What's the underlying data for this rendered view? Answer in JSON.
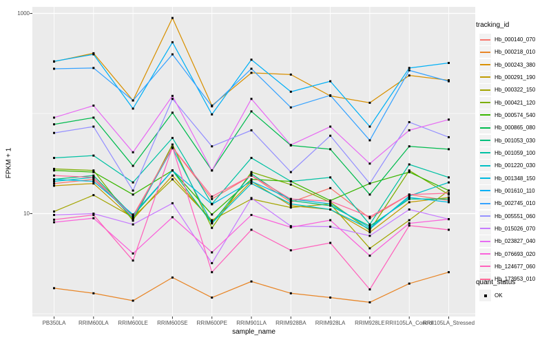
{
  "chart_data": {
    "type": "line",
    "title": "",
    "xlabel": "sample_name",
    "ylabel": "FPKM + 1",
    "y_scale": "log10",
    "ylim": [
      0.93,
      1160
    ],
    "y_major_ticks": [
      {
        "label": "1000",
        "value": 1000
      },
      {
        "label": "10",
        "value": 10
      }
    ],
    "y_minor_gridlines": [
      100,
      1
    ],
    "grid": "on",
    "point_marker": "black-square",
    "categories": [
      "PB350LA",
      "RRIM600LA",
      "RRIM600LE",
      "RRIM600SE",
      "RRIM600PE",
      "RRIM901LA",
      "RRIM928BA",
      "RRIM928LA",
      "RRIM928LE",
      "RRII105LA_Control",
      "RRII105LA_Stressed"
    ],
    "legend": {
      "title": "tracking_id",
      "position": "right"
    },
    "quant_legend": {
      "title": "quant_status",
      "items": [
        {
          "label": "OK",
          "marker": "black-square"
        }
      ]
    },
    "series": [
      {
        "name": "Hb_000140_070",
        "color": "#F8766D",
        "values": [
          20,
          22,
          9.5,
          46,
          14,
          24,
          13,
          18,
          9,
          15.5,
          13.5
        ]
      },
      {
        "name": "Hb_000218_010",
        "color": "#E88526",
        "values": [
          1.8,
          1.6,
          1.35,
          2.3,
          1.45,
          2.1,
          1.6,
          1.45,
          1.3,
          2.0,
          2.6
        ]
      },
      {
        "name": "Hb_000243_380",
        "color": "#D89000",
        "values": [
          330,
          400,
          135,
          900,
          120,
          255,
          245,
          150,
          128,
          240,
          215
        ]
      },
      {
        "name": "Hb_000291_190",
        "color": "#C09B00",
        "values": [
          19,
          20,
          8.8,
          24,
          8.3,
          21,
          12,
          11,
          6.5,
          13,
          14.5
        ]
      },
      {
        "name": "Hb_000322_150",
        "color": "#A3A500",
        "values": [
          10.5,
          15.3,
          9.2,
          22,
          8.6,
          14,
          11.5,
          12.5,
          4.5,
          8.6,
          17
        ]
      },
      {
        "name": "Hb_000421_120",
        "color": "#7CAE00",
        "values": [
          28,
          27,
          8.5,
          49,
          7.2,
          26,
          19.5,
          13,
          6.8,
          27,
          15.5
        ]
      },
      {
        "name": "Hb_000574_540",
        "color": "#39B600",
        "values": [
          27,
          26,
          15.5,
          27,
          9.8,
          22,
          21,
          13.5,
          20,
          26,
          17
        ]
      },
      {
        "name": "Hb_000865_080",
        "color": "#00BB4E",
        "values": [
          78,
          91,
          30,
          102,
          27,
          105,
          48,
          44,
          15.5,
          47,
          44
        ]
      },
      {
        "name": "Hb_001053_030",
        "color": "#00BF7D",
        "values": [
          22,
          24,
          9.5,
          27,
          8,
          25,
          13.5,
          12,
          7.5,
          14,
          14
        ]
      },
      {
        "name": "Hb_001059_100",
        "color": "#00C1A3",
        "values": [
          36,
          38,
          20.5,
          57,
          12.5,
          36,
          21,
          23,
          7.8,
          31,
          23
        ]
      },
      {
        "name": "Hb_001220_030",
        "color": "#00BFC4",
        "values": [
          21,
          23,
          9,
          45,
          8,
          20,
          12.5,
          11,
          7,
          15,
          20.5
        ]
      },
      {
        "name": "Hb_001348_150",
        "color": "#00BAE0",
        "values": [
          22,
          21,
          9.8,
          27,
          12.4,
          21,
          14,
          12.5,
          7.2,
          14.5,
          13
        ]
      },
      {
        "name": "Hb_001610_110",
        "color": "#00B0F6",
        "values": [
          332,
          390,
          112,
          515,
          98,
          345,
          165,
          210,
          74,
          285,
          320
        ]
      },
      {
        "name": "Hb_002745_010",
        "color": "#35A2FF",
        "values": [
          280,
          285,
          135,
          390,
          118,
          280,
          115,
          152,
          54,
          270,
          210
        ]
      },
      {
        "name": "Hb_005551_060",
        "color": "#9590FF",
        "values": [
          64,
          74,
          17,
          140,
          47,
          68,
          26,
          60,
          20,
          82,
          58
        ]
      },
      {
        "name": "Hb_015026_070",
        "color": "#C77CFF",
        "values": [
          9.7,
          10,
          7.8,
          12.7,
          3.2,
          14.3,
          7.5,
          7.4,
          6,
          11,
          8.8
        ]
      },
      {
        "name": "Hb_023827_040",
        "color": "#E76BF3",
        "values": [
          91,
          120,
          41,
          150,
          27,
          140,
          48.5,
          74,
          31.6,
          68,
          87
        ]
      },
      {
        "name": "Hb_076693_020",
        "color": "#FA62DB",
        "values": [
          8.2,
          9,
          4,
          9.2,
          4.1,
          9.7,
          7.3,
          8.6,
          3.8,
          8,
          8.8
        ]
      },
      {
        "name": "Hb_124677_060",
        "color": "#FF62BC",
        "values": [
          8.7,
          9.7,
          3.4,
          46,
          2.6,
          6.9,
          4.3,
          5.1,
          1.75,
          7.6,
          6.9
        ]
      },
      {
        "name": "Hb_173953_010",
        "color": "#FF6A98",
        "values": [
          24,
          23,
          9.3,
          46,
          14.8,
          24,
          14,
          13.3,
          9.3,
          15.5,
          16
        ]
      }
    ],
    "colors": {
      "panel_background": "#EBEBEB",
      "gridline": "#FFFFFF",
      "tick_label": "#4D4D4D",
      "tick_mark": "#333333",
      "point": "#000000",
      "legend_key_background": "#F2F2F2"
    }
  }
}
